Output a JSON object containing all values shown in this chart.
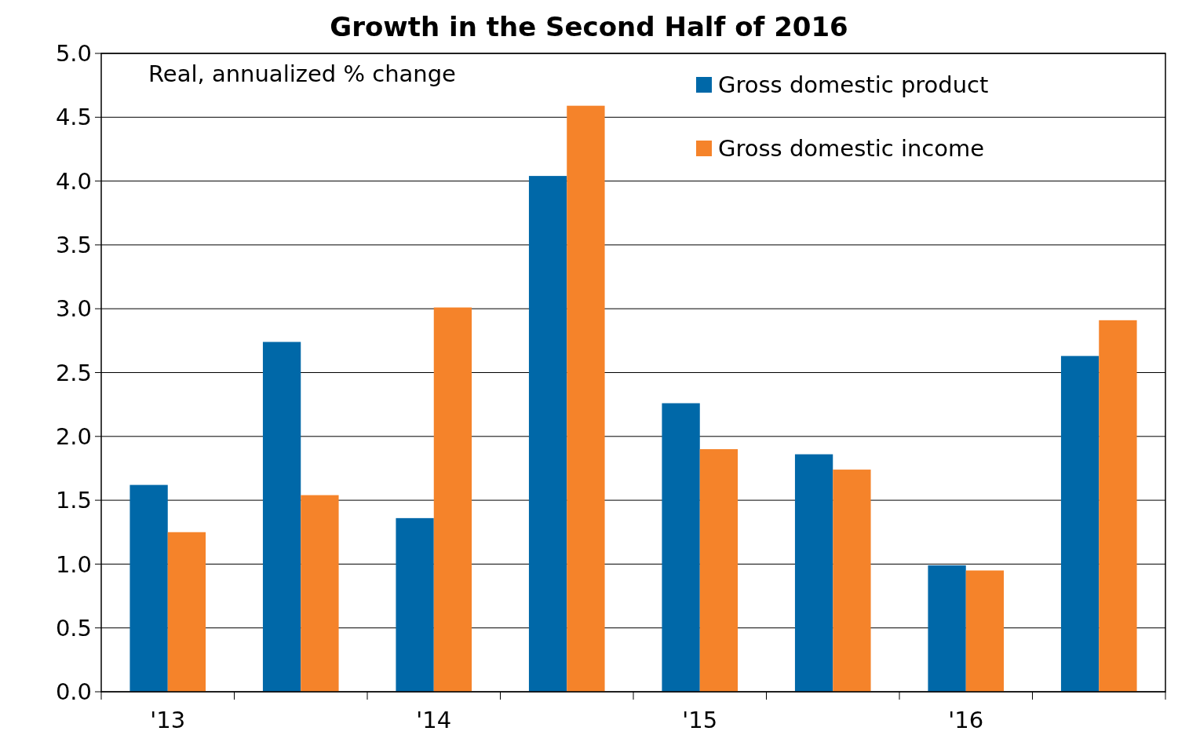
{
  "chart_data": {
    "type": "bar",
    "title": "Growth in the Second Half of 2016",
    "subtitle": "Real, annualized % change",
    "categories": [
      "'13",
      null,
      "'14",
      null,
      "'15",
      null,
      "'16",
      null
    ],
    "series": [
      {
        "name": "Gross domestic product",
        "color": "#0068a8",
        "values": [
          1.62,
          2.74,
          1.36,
          4.04,
          2.26,
          1.86,
          0.99,
          2.63
        ]
      },
      {
        "name": "Gross domestic income",
        "color": "#f5832a",
        "values": [
          1.25,
          1.54,
          3.01,
          4.59,
          1.9,
          1.74,
          0.95,
          2.91
        ]
      }
    ],
    "ylim": [
      0,
      5
    ],
    "yticks": [
      {
        "value": 0,
        "label": "0.0"
      },
      {
        "value": 0.5,
        "label": "0.5"
      },
      {
        "value": 1,
        "label": "1.0"
      },
      {
        "value": 1.5,
        "label": "1.5"
      },
      {
        "value": 2,
        "label": "2.0"
      },
      {
        "value": 2.5,
        "label": "2.5"
      },
      {
        "value": 3,
        "label": "3.0"
      },
      {
        "value": 3.5,
        "label": "3.5"
      },
      {
        "value": 4,
        "label": "4.0"
      },
      {
        "value": 4.5,
        "label": "4.5"
      },
      {
        "value": 5,
        "label": "5.0"
      }
    ],
    "grid": "y",
    "legend": "top right"
  }
}
